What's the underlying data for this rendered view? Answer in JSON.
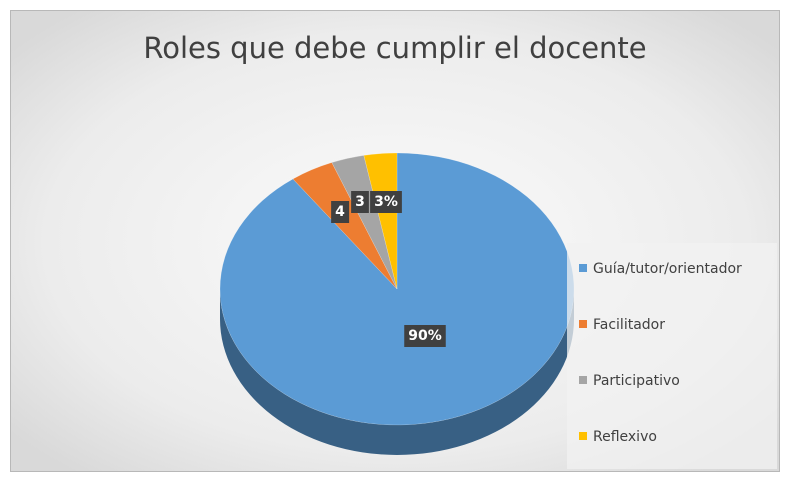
{
  "chart_data": {
    "type": "pie",
    "title": "Roles que debe cumplir el docente",
    "categories": [
      "Guía/tutor/orientador",
      "Facilitador",
      "Participativo",
      "Reflexivo"
    ],
    "values": [
      90,
      4,
      3,
      3
    ],
    "data_labels": [
      "90%",
      "4",
      "3",
      "3%"
    ],
    "colors": [
      "#5b9bd5",
      "#ed7d31",
      "#a5a5a5",
      "#ffc000"
    ],
    "legend_position": "right",
    "style": "3d"
  }
}
